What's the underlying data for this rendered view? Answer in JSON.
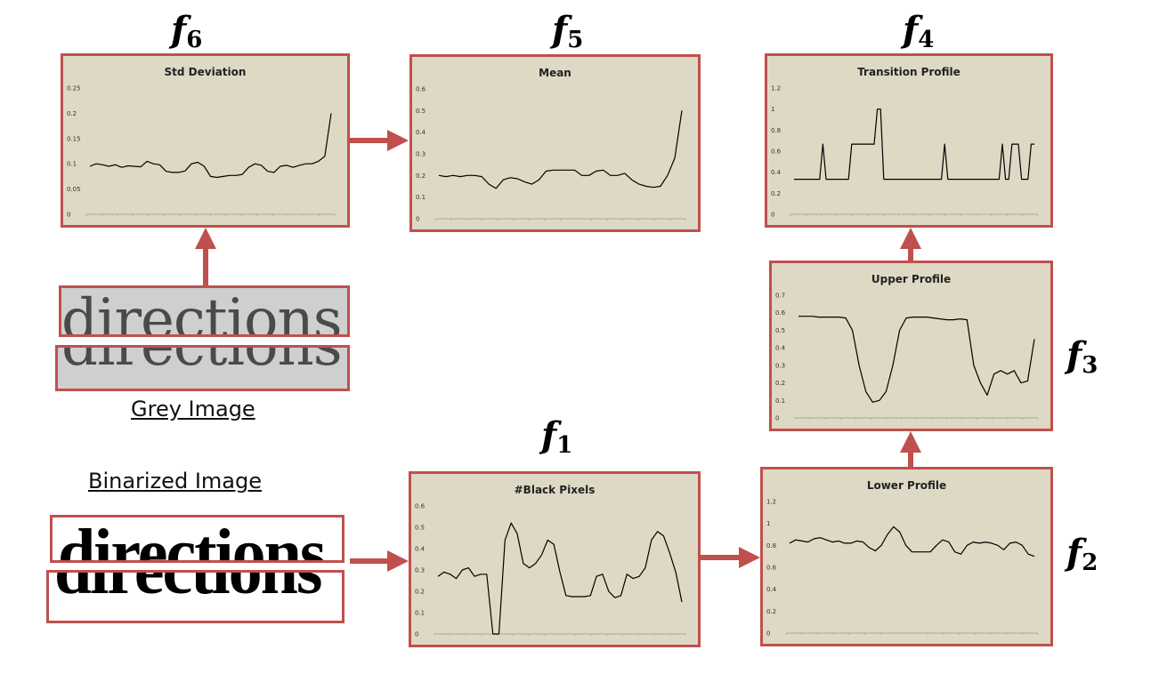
{
  "charts": {
    "f6": {
      "title": "Std Deviation",
      "yticks": [
        "0.25",
        "0.2",
        "0.15",
        "0.1",
        "0.05",
        "0"
      ],
      "ymax": 0.25,
      "values": [
        0.095,
        0.1,
        0.098,
        0.095,
        0.098,
        0.093,
        0.096,
        0.095,
        0.094,
        0.105,
        0.1,
        0.098,
        0.085,
        0.083,
        0.083,
        0.086,
        0.1,
        0.103,
        0.095,
        0.075,
        0.073,
        0.075,
        0.077,
        0.077,
        0.079,
        0.093,
        0.1,
        0.097,
        0.085,
        0.083,
        0.095,
        0.097,
        0.093,
        0.097,
        0.1,
        0.1,
        0.105,
        0.115,
        0.2
      ]
    },
    "f5": {
      "title": "Mean",
      "yticks": [
        "0.6",
        "0.5",
        "0.4",
        "0.3",
        "0.2",
        "0.1",
        "0"
      ],
      "ymax": 0.6,
      "values": [
        0.2,
        0.195,
        0.2,
        0.195,
        0.2,
        0.2,
        0.195,
        0.16,
        0.14,
        0.18,
        0.19,
        0.185,
        0.17,
        0.16,
        0.18,
        0.22,
        0.225,
        0.225,
        0.225,
        0.225,
        0.2,
        0.2,
        0.22,
        0.225,
        0.2,
        0.2,
        0.21,
        0.18,
        0.16,
        0.15,
        0.145,
        0.15,
        0.2,
        0.28,
        0.5
      ]
    },
    "f4": {
      "title": "Transition Profile",
      "yticks": [
        "1.2",
        "1",
        "0.8",
        "0.6",
        "0.4",
        "0.2",
        "0"
      ],
      "ymax": 1.2,
      "values": [
        0.333,
        0.333,
        0.333,
        0.333,
        0.333,
        0.333,
        0.333,
        0.333,
        0.333,
        0.667,
        0.333,
        0.333,
        0.333,
        0.333,
        0.333,
        0.333,
        0.333,
        0.333,
        0.667,
        0.667,
        0.667,
        0.667,
        0.667,
        0.667,
        0.667,
        0.667,
        1,
        1,
        0.333,
        0.333,
        0.333,
        0.333,
        0.333,
        0.333,
        0.333,
        0.333,
        0.333,
        0.333,
        0.333,
        0.333,
        0.333,
        0.333,
        0.333,
        0.333,
        0.333,
        0.333,
        0.333,
        0.667,
        0.333,
        0.333,
        0.333,
        0.333,
        0.333,
        0.333,
        0.333,
        0.333,
        0.333,
        0.333,
        0.333,
        0.333,
        0.333,
        0.333,
        0.333,
        0.333,
        0.333,
        0.667,
        0.333,
        0.333,
        0.667,
        0.667,
        0.667,
        0.333,
        0.333,
        0.333,
        0.667,
        0.667
      ]
    },
    "f3": {
      "title": "Upper Profile",
      "yticks": [
        "0.7",
        "0.6",
        "0.5",
        "0.4",
        "0.3",
        "0.2",
        "0.1",
        "0"
      ],
      "ymax": 0.7,
      "values": [
        0.58,
        0.58,
        0.58,
        0.575,
        0.575,
        0.575,
        0.575,
        0.57,
        0.5,
        0.3,
        0.15,
        0.09,
        0.1,
        0.15,
        0.3,
        0.5,
        0.57,
        0.575,
        0.575,
        0.575,
        0.57,
        0.565,
        0.56,
        0.56,
        0.565,
        0.56,
        0.3,
        0.2,
        0.13,
        0.25,
        0.27,
        0.25,
        0.27,
        0.2,
        0.21,
        0.45
      ]
    },
    "f1": {
      "title": "#Black Pixels",
      "yticks": [
        "0.6",
        "0.5",
        "0.4",
        "0.3",
        "0.2",
        "0.1",
        "0"
      ],
      "ymax": 0.6,
      "values": [
        0.27,
        0.29,
        0.28,
        0.26,
        0.3,
        0.31,
        0.27,
        0.28,
        0.28,
        0.0,
        0.0,
        0.44,
        0.52,
        0.47,
        0.33,
        0.31,
        0.33,
        0.37,
        0.44,
        0.42,
        0.29,
        0.18,
        0.175,
        0.175,
        0.175,
        0.18,
        0.27,
        0.28,
        0.2,
        0.17,
        0.18,
        0.28,
        0.26,
        0.27,
        0.31,
        0.44,
        0.48,
        0.46,
        0.38,
        0.29,
        0.15
      ]
    },
    "f2": {
      "title": "Lower Profile",
      "yticks": [
        "1.2",
        "1",
        "0.8",
        "0.6",
        "0.4",
        "0.2",
        "0"
      ],
      "ymax": 1.2,
      "values": [
        0.82,
        0.85,
        0.84,
        0.83,
        0.86,
        0.87,
        0.85,
        0.83,
        0.84,
        0.82,
        0.82,
        0.84,
        0.83,
        0.78,
        0.75,
        0.8,
        0.9,
        0.97,
        0.92,
        0.8,
        0.74,
        0.74,
        0.74,
        0.74,
        0.8,
        0.85,
        0.83,
        0.74,
        0.72,
        0.8,
        0.83,
        0.82,
        0.83,
        0.82,
        0.8,
        0.76,
        0.82,
        0.83,
        0.8,
        0.72,
        0.7
      ]
    }
  },
  "labels": {
    "f6": {
      "main": "f",
      "sub": "6"
    },
    "f5": {
      "main": "f",
      "sub": "5"
    },
    "f4": {
      "main": "f",
      "sub": "4"
    },
    "f3": {
      "main": "f",
      "sub": "3"
    },
    "f2": {
      "main": "f",
      "sub": "2"
    },
    "f1": {
      "main": "f",
      "sub": "1"
    }
  },
  "captions": {
    "grey": "Grey Image",
    "binarized": "Binarized Image"
  },
  "word": "directions",
  "colors": {
    "border": "#c0504d",
    "arrow": "#c0504d",
    "chart_bg": "#ddd9c4",
    "line": "#000000"
  }
}
